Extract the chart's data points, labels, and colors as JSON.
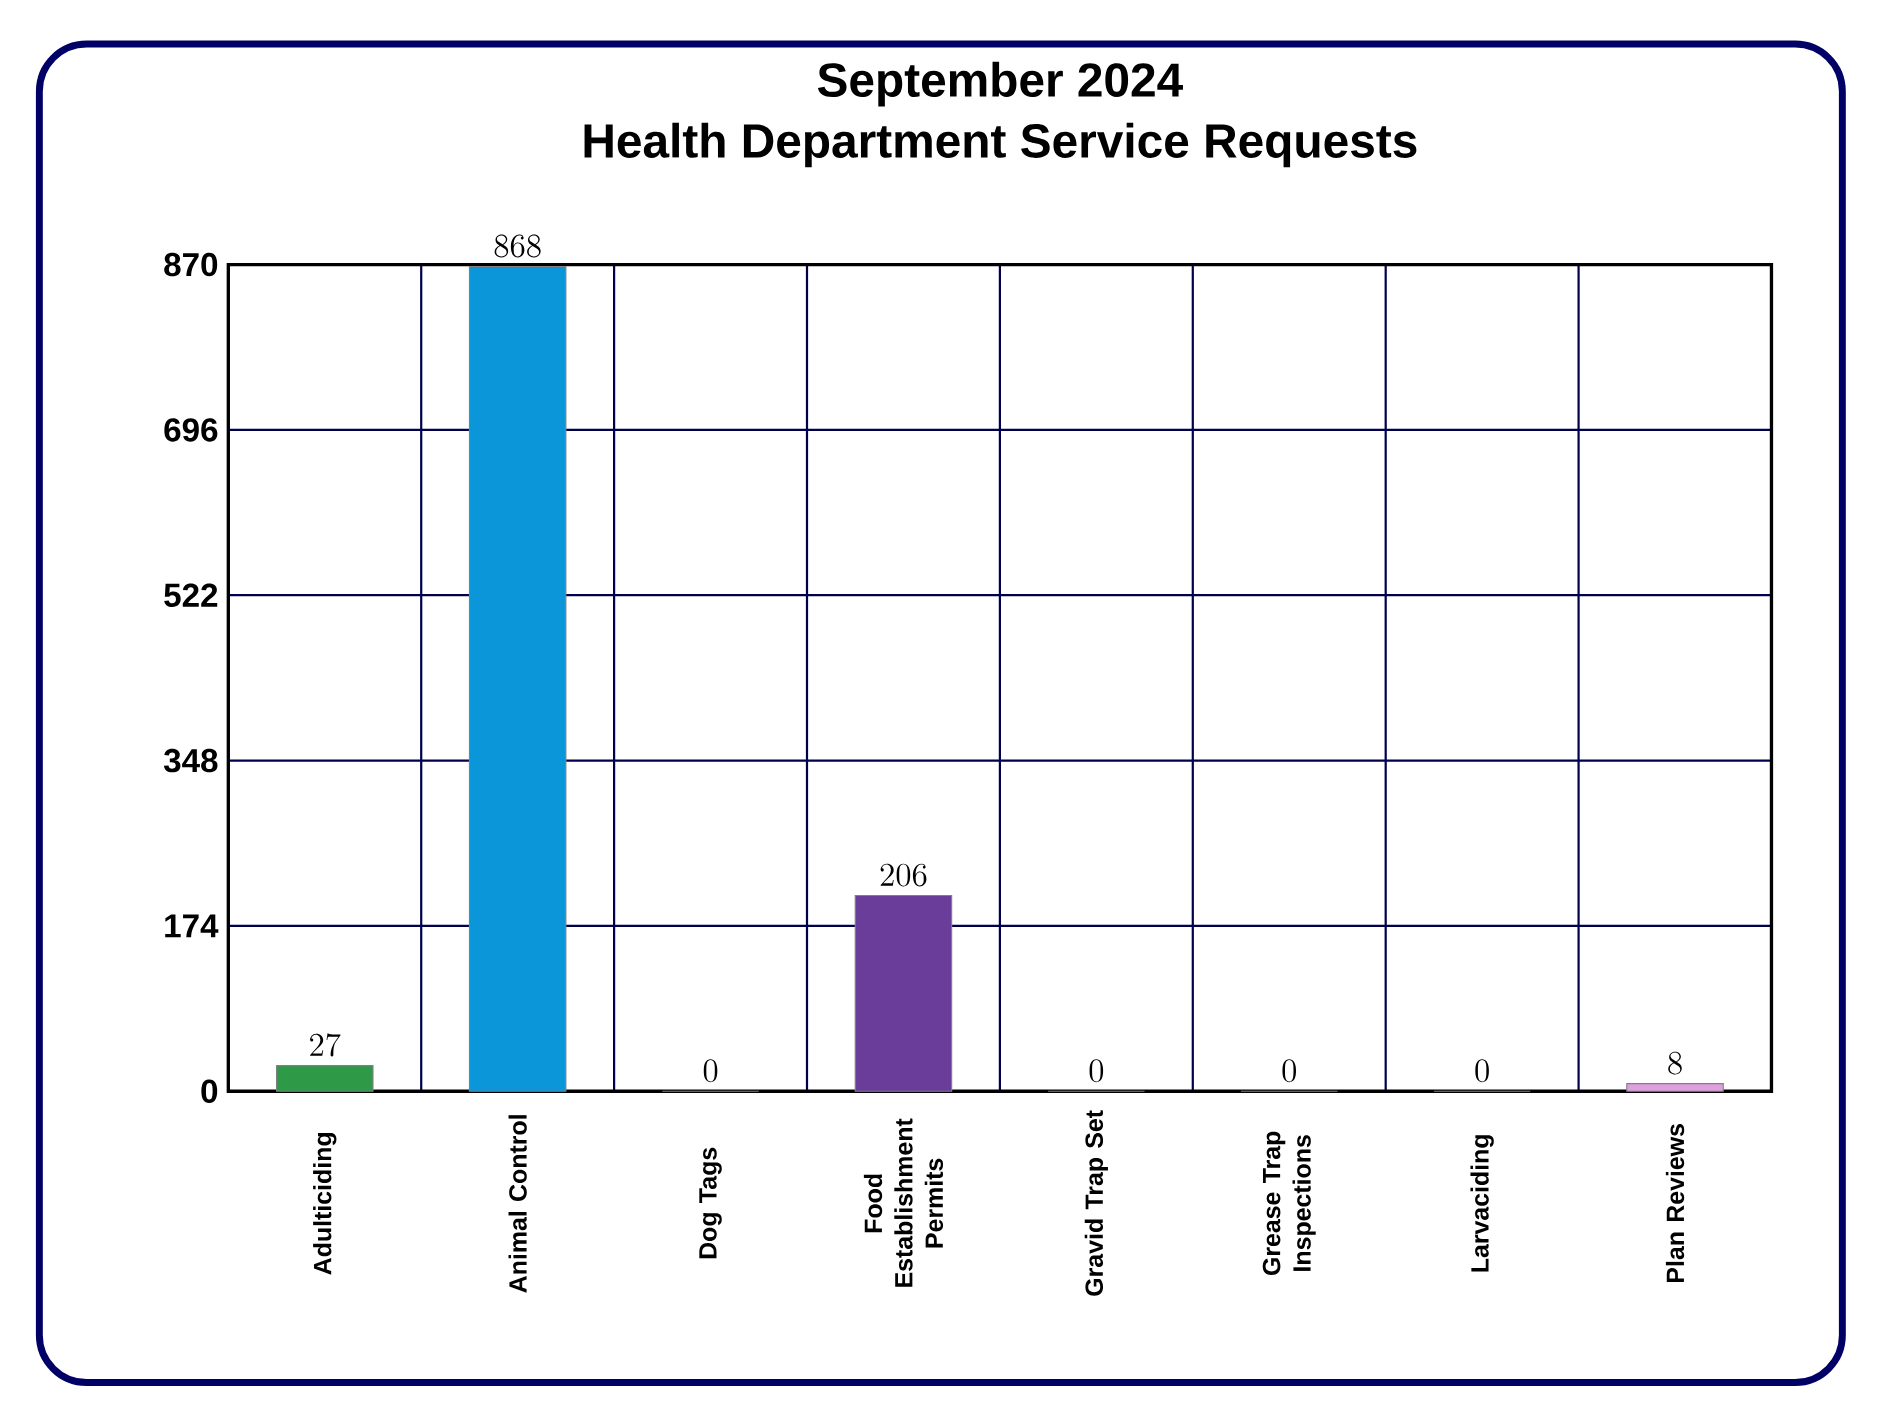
{
  "chart_data": {
    "type": "bar",
    "title": "September 2024\nHealth Department Service Requests",
    "categories": [
      "Adulticiding",
      "Animal Control",
      "Dog Tags",
      "Food Establishment Permits",
      "Gravid Trap Set",
      "Grease Trap Inspections",
      "Larvaciding",
      "Plan Reviews"
    ],
    "values": [
      27,
      868,
      0,
      206,
      0,
      0,
      0,
      8
    ],
    "colors": [
      "#2e9a48",
      "#0a96d8",
      "#f0b040",
      "#6a3d9a",
      "#6ab04c",
      "#d0203a",
      "#2a70c0",
      "#e0a0e0"
    ],
    "ylim": [
      0,
      870
    ],
    "yticks": [
      0,
      174,
      348,
      522,
      696,
      870
    ],
    "grid": true,
    "data_labels": true
  }
}
